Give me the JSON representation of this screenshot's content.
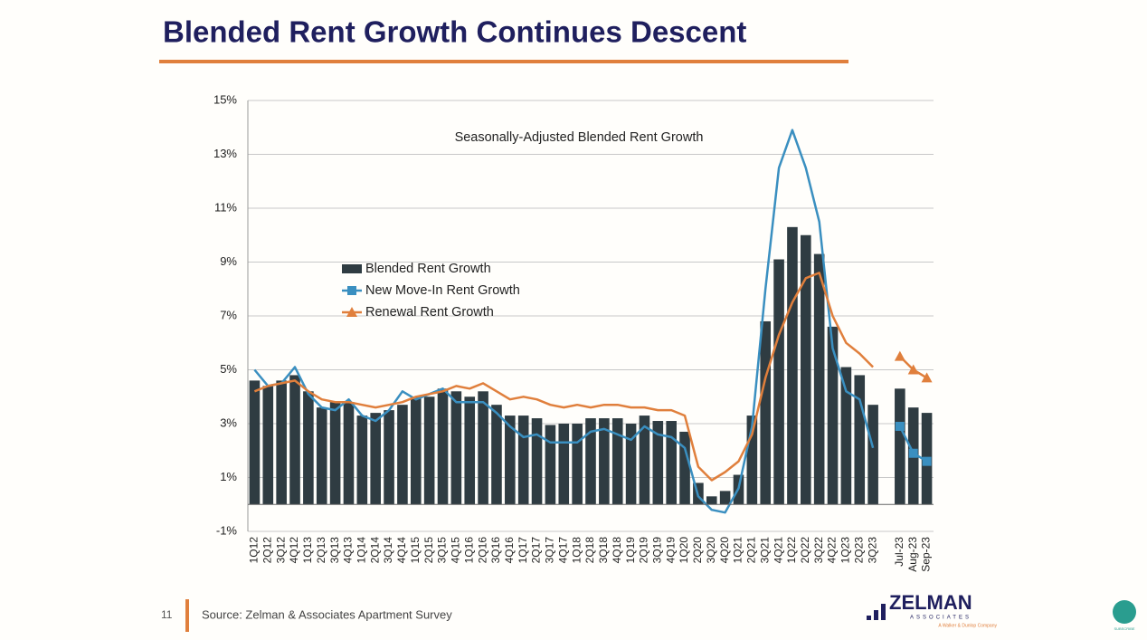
{
  "slide": {
    "title": "Blended Rent Growth Continues Descent",
    "page_number": "11",
    "source": "Source: Zelman & Associates Apartment Survey",
    "logo": "ZELMAN",
    "logo_sub": "ASSOCIATES",
    "logo_tag": "A Walker & Dunlop Company",
    "subscribe": "SUBSCRIBE"
  },
  "chart_data": {
    "type": "bar_line",
    "title": "Seasonally-Adjusted Blended Rent Growth",
    "categories": [
      "1Q12",
      "2Q12",
      "3Q12",
      "4Q12",
      "1Q13",
      "2Q13",
      "3Q13",
      "4Q13",
      "1Q14",
      "2Q14",
      "3Q14",
      "4Q14",
      "1Q15",
      "2Q15",
      "3Q15",
      "4Q15",
      "1Q16",
      "2Q16",
      "3Q16",
      "4Q16",
      "1Q17",
      "2Q17",
      "3Q17",
      "4Q17",
      "1Q18",
      "2Q18",
      "3Q18",
      "4Q18",
      "1Q19",
      "2Q19",
      "3Q19",
      "4Q19",
      "1Q20",
      "2Q20",
      "3Q20",
      "4Q20",
      "1Q21",
      "2Q21",
      "3Q21",
      "4Q21",
      "1Q22",
      "2Q22",
      "3Q22",
      "4Q22",
      "1Q23",
      "2Q23",
      "3Q23",
      null,
      "Jul-23",
      "Aug-23",
      "Sep-23"
    ],
    "series": [
      {
        "name": "Blended Rent Growth",
        "kind": "bar",
        "color": "#2f3c42",
        "values": [
          4.6,
          4.4,
          4.6,
          4.8,
          4.2,
          3.6,
          3.8,
          3.8,
          3.3,
          3.4,
          3.5,
          3.7,
          4.0,
          4.0,
          4.3,
          4.2,
          4.0,
          4.2,
          3.7,
          3.3,
          3.3,
          3.2,
          2.95,
          3.0,
          3.0,
          3.2,
          3.2,
          3.2,
          3.0,
          3.3,
          3.1,
          3.1,
          2.7,
          0.8,
          0.3,
          0.5,
          1.1,
          3.3,
          6.8,
          9.1,
          10.3,
          10.0,
          9.3,
          6.6,
          5.1,
          4.8,
          3.7,
          null,
          4.3,
          3.6,
          3.4
        ]
      },
      {
        "name": "New Move-In Rent Growth",
        "kind": "line",
        "marker": "square",
        "color": "#3a8fc0",
        "values": [
          5.0,
          4.4,
          4.5,
          5.1,
          4.1,
          3.6,
          3.5,
          3.9,
          3.3,
          3.1,
          3.5,
          4.2,
          3.9,
          4.1,
          4.3,
          3.8,
          3.8,
          3.8,
          3.4,
          2.9,
          2.5,
          2.6,
          2.3,
          2.3,
          2.3,
          2.7,
          2.8,
          2.6,
          2.4,
          2.9,
          2.6,
          2.5,
          2.1,
          0.3,
          -0.2,
          -0.3,
          0.6,
          2.9,
          8.0,
          12.5,
          13.9,
          12.5,
          10.5,
          5.8,
          4.2,
          3.9,
          2.1,
          null,
          2.9,
          1.9,
          1.6
        ]
      },
      {
        "name": "Renewal Rent Growth",
        "kind": "line",
        "marker": "triangle",
        "color": "#e07f3c",
        "values": [
          4.2,
          4.4,
          4.5,
          4.6,
          4.2,
          3.9,
          3.8,
          3.8,
          3.7,
          3.6,
          3.7,
          3.8,
          4.0,
          4.1,
          4.2,
          4.4,
          4.3,
          4.5,
          4.2,
          3.9,
          4.0,
          3.9,
          3.7,
          3.6,
          3.7,
          3.6,
          3.7,
          3.7,
          3.6,
          3.6,
          3.5,
          3.5,
          3.3,
          1.4,
          0.9,
          1.2,
          1.6,
          2.6,
          4.7,
          6.3,
          7.5,
          8.4,
          8.6,
          7.0,
          6.0,
          5.6,
          5.1,
          null,
          5.5,
          5.0,
          4.7
        ]
      }
    ],
    "ylim": [
      -1,
      15
    ],
    "yticks": [
      {
        "value": -1,
        "label": "-1%"
      },
      {
        "value": 1,
        "label": "1%"
      },
      {
        "value": 3,
        "label": "3%"
      },
      {
        "value": 5,
        "label": "5%"
      },
      {
        "value": 7,
        "label": "7%"
      },
      {
        "value": 9,
        "label": "9%"
      },
      {
        "value": 11,
        "label": "11%"
      },
      {
        "value": 13,
        "label": "13%"
      },
      {
        "value": 15,
        "label": "15%"
      }
    ],
    "grid": true,
    "legend": "left"
  }
}
